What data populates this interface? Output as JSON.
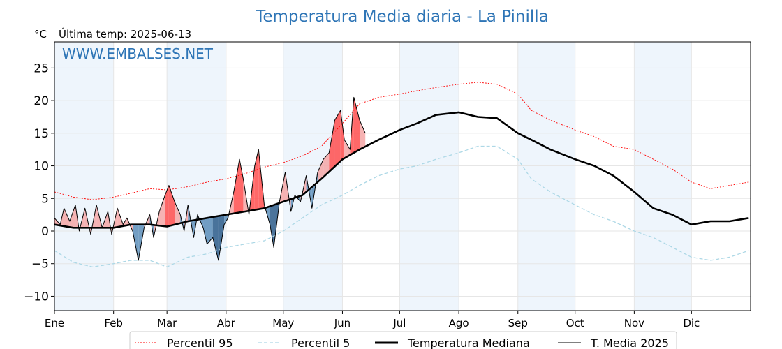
{
  "chart_data": {
    "type": "line",
    "title": "Temperatura Media diaria - La Pinilla",
    "unit": "°C",
    "last_temp_label": "Última temp: 2025-06-13",
    "watermark": "WWW.EMBALSES.NET",
    "ylim": [
      -12.2,
      29
    ],
    "y_ticks": [
      -10,
      -5,
      0,
      5,
      10,
      15,
      20,
      25
    ],
    "x_range_days": [
      0,
      365
    ],
    "months": [
      "Ene",
      "Feb",
      "Mar",
      "Abr",
      "May",
      "Jun",
      "Jul",
      "Ago",
      "Sep",
      "Oct",
      "Nov",
      "Dic"
    ],
    "month_start_days": [
      0,
      31,
      59,
      90,
      120,
      151,
      181,
      212,
      243,
      273,
      304,
      334
    ],
    "grid": true,
    "legend_position": "bottom",
    "colors": {
      "title": "#2e75b6",
      "p95": "#ff0000",
      "p5": "#add8e6",
      "median": "#000000",
      "media2025": "#000000",
      "above": "#f4a6a6",
      "above_strong": "#ff4d4d",
      "below": "#5b8db8",
      "below_strong": "#2b5c8a",
      "band": "#eef5fc"
    },
    "series": [
      {
        "name": "Percentil 95",
        "style": "dotted",
        "x": [
          0,
          10,
          20,
          31,
          40,
          50,
          59,
          70,
          80,
          90,
          100,
          110,
          120,
          130,
          140,
          151,
          160,
          170,
          181,
          190,
          200,
          212,
          222,
          232,
          243,
          250,
          260,
          273,
          283,
          293,
          304,
          314,
          324,
          334,
          344,
          354,
          364
        ],
        "y": [
          6,
          5.2,
          4.8,
          5.2,
          5.8,
          6.5,
          6.3,
          6.8,
          7.5,
          8,
          8.8,
          9.8,
          10.5,
          11.5,
          13,
          16.5,
          19.5,
          20.5,
          21,
          21.5,
          22,
          22.5,
          22.8,
          22.5,
          21,
          18.5,
          17,
          15.5,
          14.5,
          13,
          12.5,
          11,
          9.5,
          7.5,
          6.5,
          7,
          7.5
        ]
      },
      {
        "name": "Percentil 5",
        "style": "dashed",
        "x": [
          0,
          10,
          20,
          31,
          40,
          50,
          59,
          70,
          80,
          90,
          100,
          110,
          120,
          130,
          140,
          151,
          160,
          170,
          181,
          190,
          200,
          212,
          222,
          232,
          243,
          250,
          260,
          273,
          283,
          293,
          304,
          314,
          324,
          334,
          344,
          354,
          364
        ],
        "y": [
          -3,
          -4.8,
          -5.5,
          -5,
          -4.5,
          -4.5,
          -5.5,
          -4,
          -3.5,
          -2.5,
          -2,
          -1.5,
          0,
          2,
          4,
          5.5,
          7,
          8.5,
          9.5,
          10,
          11,
          12,
          13,
          13,
          11,
          8,
          6,
          4,
          2.5,
          1.5,
          0,
          -1,
          -2.5,
          -4,
          -4.5,
          -4,
          -3
        ]
      },
      {
        "name": "Temperatura Mediana",
        "style": "solid-bold",
        "x": [
          0,
          10,
          20,
          31,
          40,
          50,
          59,
          70,
          80,
          90,
          100,
          110,
          120,
          130,
          140,
          151,
          160,
          170,
          181,
          190,
          200,
          212,
          222,
          232,
          243,
          250,
          260,
          273,
          283,
          293,
          304,
          314,
          324,
          334,
          344,
          354,
          364
        ],
        "y": [
          1,
          0.5,
          0.5,
          0.5,
          1,
          1,
          0.7,
          1.5,
          2,
          2.5,
          3,
          3.5,
          4.5,
          5.5,
          8,
          11,
          12.5,
          14,
          15.5,
          16.5,
          17.8,
          18.2,
          17.5,
          17.3,
          15,
          14,
          12.5,
          11,
          10,
          8.5,
          6,
          3.5,
          2.5,
          1,
          1.5,
          1.5,
          2
        ]
      },
      {
        "name": "T. Media 2025",
        "style": "solid-thin",
        "x": [
          0,
          3,
          5,
          8,
          11,
          13,
          16,
          19,
          22,
          25,
          28,
          30,
          33,
          36,
          38,
          41,
          44,
          47,
          50,
          52,
          55,
          58,
          60,
          63,
          66,
          68,
          70,
          73,
          75,
          78,
          80,
          83,
          86,
          89,
          91,
          94,
          97,
          99,
          102,
          105,
          107,
          110,
          113,
          115,
          118,
          121,
          124,
          126,
          129,
          132,
          135,
          138,
          141,
          144,
          147,
          150,
          152,
          155,
          157,
          160,
          163
        ],
        "y": [
          2,
          1,
          3.5,
          1.5,
          4,
          0,
          3.5,
          -0.5,
          4,
          0.5,
          3,
          -0.5,
          3.5,
          1,
          2,
          0,
          -4.5,
          0.5,
          2.5,
          -1,
          3,
          5.5,
          7,
          4.5,
          2.5,
          0,
          4,
          -1,
          2.5,
          0.5,
          -2,
          -1,
          -4.5,
          1,
          2,
          6,
          11,
          8,
          2.5,
          10,
          12.5,
          4,
          1,
          -2.5,
          4.5,
          9,
          3,
          5.5,
          4.5,
          8.5,
          3.5,
          9,
          11,
          12,
          17,
          18.5,
          14,
          12.5,
          20.5,
          17,
          15
        ]
      }
    ]
  }
}
